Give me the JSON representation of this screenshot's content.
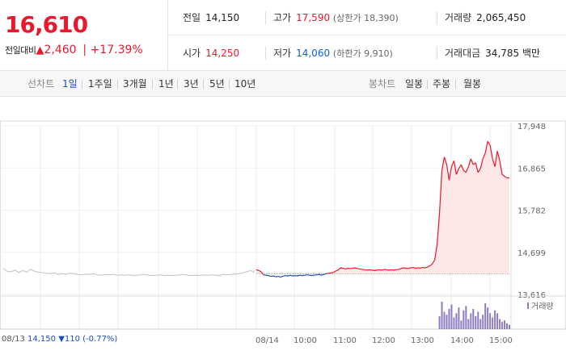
{
  "price": {
    "current": "16,610",
    "change_label": "전일대비",
    "change_arrow": "▲",
    "change_value": "2,460",
    "change_rate": "+17.39%"
  },
  "info": {
    "prev_close_label": "전일",
    "prev_close": "14,150",
    "high_label": "고가",
    "high": "17,590",
    "upper_limit": "(상한가 18,390)",
    "volume_label": "거래량",
    "volume": "2,065,450",
    "open_label": "시가",
    "open": "14,250",
    "low_label": "저가",
    "low": "14,060",
    "lower_limit": "(하한가 9,910)",
    "amount_label": "거래대금",
    "amount": "34,785",
    "amount_unit": "백만"
  },
  "tabs": {
    "line_chart_label": "선차트",
    "candle_label": "봉차트",
    "periods": [
      "1일",
      "1주일",
      "3개월",
      "1년",
      "3년",
      "5년",
      "10년"
    ],
    "candles": [
      "일봉",
      "주봉",
      "월봉"
    ],
    "active_period": "1일"
  },
  "bottom": {
    "prev_date": "08/13",
    "prev_close": "14,150",
    "prev_change": "▼110 (-0.77%)"
  },
  "colors": {
    "up": "#e8192c",
    "down": "#1a4dbe",
    "prev_day_line": "#c8c8c8",
    "up_fill": "#fde4e4",
    "volume_bar": "#8e7cc3"
  },
  "chart_data": {
    "type": "line",
    "y_ticks": [
      "17,948",
      "16,865",
      "15,782",
      "14,699",
      "13,616"
    ],
    "ylim": [
      13616,
      17948
    ],
    "x_ticks": [
      "08/13",
      "08/14",
      "10:00",
      "11:00",
      "12:00",
      "13:00",
      "14:00",
      "15:00"
    ],
    "baseline": 14150,
    "volume_legend": "거래량",
    "series": [
      {
        "style": "previous-day",
        "values": [
          14280,
          14210,
          14200,
          14240,
          14180,
          14230,
          14190,
          14260,
          14210,
          14190,
          14180,
          14160,
          14150,
          14170,
          14130,
          14150,
          14140,
          14160,
          14150,
          14130,
          14120,
          14140,
          14130,
          14150,
          14120,
          14110,
          14130,
          14120,
          14130,
          14110,
          14120,
          14110,
          14120,
          14100,
          14110,
          14120,
          14130,
          14110,
          14100,
          14110,
          14120,
          14100,
          14110,
          14100,
          14110,
          14120,
          14130,
          14110,
          14100,
          14110,
          14100,
          14120,
          14110,
          14120,
          14110,
          14100,
          14130,
          14120,
          14130,
          14140,
          14150,
          14170,
          14200,
          14230,
          14180
        ]
      },
      {
        "style": "today",
        "values": [
          14250,
          14230,
          14200,
          14120,
          14110,
          14100,
          14080,
          14090,
          14070,
          14080,
          14060,
          14080,
          14100,
          14090,
          14110,
          14090,
          14100,
          14090,
          14110,
          14100,
          14110,
          14120,
          14110,
          14100,
          14110,
          14120,
          14130,
          14110,
          14130,
          14150,
          14160,
          14170,
          14180,
          14220,
          14250,
          14300,
          14290,
          14270,
          14290,
          14280,
          14290,
          14300,
          14280,
          14270,
          14260,
          14250,
          14240,
          14250,
          14240,
          14230,
          14240,
          14250,
          14240,
          14260,
          14250,
          14240,
          14250,
          14240,
          14250,
          14260,
          14280,
          14300,
          14290,
          14280,
          14300,
          14310,
          14290,
          14300,
          14290,
          14310,
          14300,
          14320,
          14350,
          14400,
          14500,
          14900,
          15700,
          16800,
          17150,
          16950,
          16550,
          16900,
          17050,
          16700,
          16850,
          16950,
          16800,
          16750,
          16900,
          17100,
          16950,
          17000,
          16750,
          16850,
          17100,
          17250,
          17550,
          17450,
          17100,
          16900,
          17300,
          17050,
          16700,
          16650,
          16610,
          16610
        ]
      }
    ],
    "volume": [
      0,
      0,
      0,
      0,
      0,
      0,
      0,
      0,
      0,
      0,
      0,
      0,
      0,
      0,
      0,
      0,
      0,
      0,
      0,
      0,
      0,
      0,
      0,
      0,
      0,
      0,
      0,
      0,
      0,
      0,
      0,
      0,
      0,
      0,
      0,
      0,
      0,
      0,
      0,
      0,
      0,
      0,
      0,
      0,
      0,
      0,
      0,
      0,
      0,
      0,
      0,
      0,
      0,
      0,
      0,
      0,
      0,
      0,
      0,
      0,
      0,
      0,
      0,
      0,
      0,
      0,
      0,
      0,
      0,
      0,
      0,
      0,
      0,
      0,
      0,
      0,
      45,
      95,
      60,
      50,
      70,
      85,
      40,
      55,
      75,
      30,
      65,
      80,
      35,
      55,
      70,
      45,
      60,
      35,
      50,
      90,
      75,
      55,
      40,
      65,
      55,
      35,
      25,
      30,
      20,
      15
    ]
  }
}
